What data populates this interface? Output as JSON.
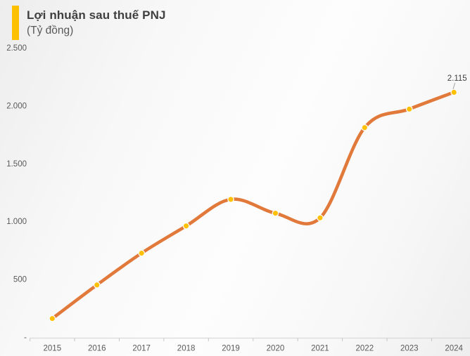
{
  "chart_data": {
    "type": "line",
    "smooth": true,
    "title": "Lợi nhuận sau thuế PNJ",
    "subtitle": "(Tỷ đồng)",
    "categories": [
      "2015",
      "2016",
      "2017",
      "2018",
      "2019",
      "2020",
      "2021",
      "2022",
      "2023",
      "2024"
    ],
    "series": [
      {
        "name": "Lợi nhuận sau thuế (Tỷ đồng)",
        "values": [
          160,
          450,
          725,
          960,
          1190,
          1070,
          1030,
          1810,
          1970,
          2115
        ]
      }
    ],
    "ylim": [
      0,
      2500
    ],
    "y_ticks": [
      {
        "value": 0,
        "label": "-"
      },
      {
        "value": 500,
        "label": "500"
      },
      {
        "value": 1000,
        "label": "1.000"
      },
      {
        "value": 1500,
        "label": "1.500"
      },
      {
        "value": 2000,
        "label": "2.000"
      },
      {
        "value": 2500,
        "label": "2.500"
      }
    ],
    "grid": false,
    "legend": "none",
    "annotations": [
      {
        "category": "2024",
        "text": "2.115"
      }
    ],
    "colors": {
      "accent": "#FFC000",
      "line": "#E1793B",
      "marker": "#FFC000",
      "marker_ring": "#FBFBFB",
      "axis": "#D9D9D9",
      "tick": "#C6C6C6",
      "label_text": "#595959",
      "annotation_text": "#404040",
      "leader": "#A6A6A6"
    }
  }
}
